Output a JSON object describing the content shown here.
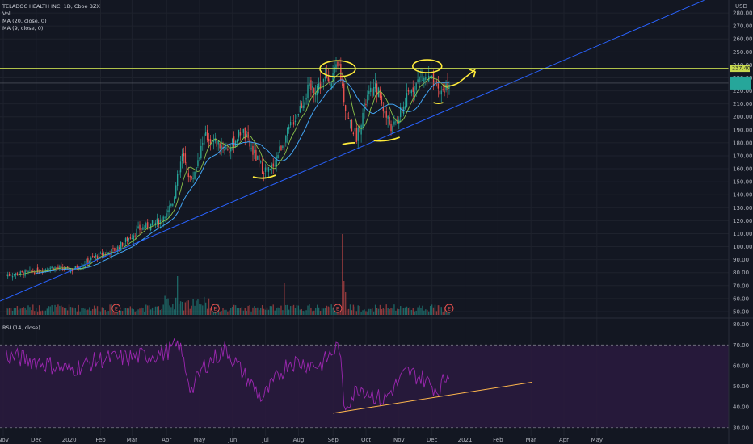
{
  "header": {
    "title_line": "TELADOC HEALTH INC, 1D, Cboe BZX",
    "indicators": [
      "Vol",
      "MA (20, close, 0)",
      "MA (9, close, 0)"
    ],
    "currency": "USD"
  },
  "rsi_panel": {
    "title": "RSI (14, close)"
  },
  "price_tags": {
    "resistance": "237.40",
    "last": ""
  },
  "event_badge": "E",
  "colors": {
    "background": "#131722",
    "grid": "#1e222d",
    "up": "#26a69a",
    "down": "#ef5350",
    "ma20": "#26a69a",
    "ma9": "#42a5f5",
    "trendline": "#2962ff",
    "resistance": "#c6d84f",
    "annotation": "#ffeb3b",
    "rsi": "#9c27b0",
    "rsi_band": "#2a1a3e",
    "rsi_trend": "#ffb74d"
  },
  "chart_data": [
    {
      "type": "candlestick",
      "title": "",
      "x_ticks": [
        "Nov",
        "Dec",
        "2020",
        "Feb",
        "Mar",
        "Apr",
        "May",
        "Jun",
        "Jul",
        "Aug",
        "Sep",
        "Oct",
        "Nov",
        "Dec",
        "2021",
        "Feb",
        "Mar",
        "Apr",
        "May"
      ],
      "y_ticks": [
        50,
        60,
        70,
        80,
        90,
        100,
        110,
        120,
        130,
        140,
        150,
        160,
        170,
        180,
        190,
        200,
        210,
        220,
        230,
        240,
        250,
        260,
        270,
        280
      ],
      "y_tick_labels": [
        "50.00",
        "60.00",
        "70.00",
        "80.00",
        "90.00",
        "100.00",
        "110.00",
        "120.00",
        "130.00",
        "140.00",
        "150.00",
        "160.00",
        "170.00",
        "180.00",
        "190.00",
        "200.00",
        "210.00",
        "220.00",
        "230.00",
        "240.00",
        "250.00",
        "260.00",
        "270.00",
        "280.00"
      ],
      "ylim": [
        45,
        290
      ],
      "series_close_keypoints": [
        {
          "t": 0,
          "v": 78
        },
        {
          "t": 14,
          "v": 80
        },
        {
          "t": 28,
          "v": 84
        },
        {
          "t": 42,
          "v": 82
        },
        {
          "t": 56,
          "v": 92
        },
        {
          "t": 70,
          "v": 98
        },
        {
          "t": 84,
          "v": 113
        },
        {
          "t": 98,
          "v": 120
        },
        {
          "t": 106,
          "v": 135
        },
        {
          "t": 112,
          "v": 170
        },
        {
          "t": 118,
          "v": 150
        },
        {
          "t": 126,
          "v": 185
        },
        {
          "t": 134,
          "v": 180
        },
        {
          "t": 142,
          "v": 175
        },
        {
          "t": 150,
          "v": 190
        },
        {
          "t": 156,
          "v": 175
        },
        {
          "t": 163,
          "v": 160
        },
        {
          "t": 168,
          "v": 158
        },
        {
          "t": 176,
          "v": 180
        },
        {
          "t": 184,
          "v": 200
        },
        {
          "t": 192,
          "v": 220
        },
        {
          "t": 200,
          "v": 225
        },
        {
          "t": 208,
          "v": 232
        },
        {
          "t": 212,
          "v": 238
        },
        {
          "t": 217,
          "v": 200
        },
        {
          "t": 223,
          "v": 185
        },
        {
          "t": 230,
          "v": 215
        },
        {
          "t": 236,
          "v": 222
        },
        {
          "t": 242,
          "v": 200
        },
        {
          "t": 246,
          "v": 190
        },
        {
          "t": 252,
          "v": 205
        },
        {
          "t": 258,
          "v": 222
        },
        {
          "t": 264,
          "v": 230
        },
        {
          "t": 270,
          "v": 228
        },
        {
          "t": 276,
          "v": 218
        },
        {
          "t": 282,
          "v": 227
        }
      ],
      "volume_spike_index": 214,
      "annotations": {
        "trendline": {
          "from": {
            "t": -4,
            "v": 58
          },
          "to": {
            "t": 290,
            "v": 210
          }
        },
        "resistance_level": 237.4,
        "current_level": 226
      }
    },
    {
      "type": "line",
      "title": "RSI (14, close)",
      "y_ticks": [
        30,
        40,
        50,
        60,
        70,
        80
      ],
      "y_tick_labels": [
        "30.00",
        "40.00",
        "50.00",
        "60.00",
        "70.00",
        "80.00"
      ],
      "ylim": [
        26,
        83
      ],
      "overbought": 70,
      "oversold": 30,
      "keypoints": [
        {
          "t": 0,
          "v": 65
        },
        {
          "t": 20,
          "v": 62
        },
        {
          "t": 40,
          "v": 58
        },
        {
          "t": 60,
          "v": 63
        },
        {
          "t": 80,
          "v": 64
        },
        {
          "t": 100,
          "v": 66
        },
        {
          "t": 110,
          "v": 70
        },
        {
          "t": 118,
          "v": 48
        },
        {
          "t": 126,
          "v": 60
        },
        {
          "t": 140,
          "v": 68
        },
        {
          "t": 150,
          "v": 57
        },
        {
          "t": 163,
          "v": 44
        },
        {
          "t": 180,
          "v": 62
        },
        {
          "t": 200,
          "v": 60
        },
        {
          "t": 212,
          "v": 70
        },
        {
          "t": 215,
          "v": 40
        },
        {
          "t": 225,
          "v": 50
        },
        {
          "t": 240,
          "v": 43
        },
        {
          "t": 255,
          "v": 57
        },
        {
          "t": 265,
          "v": 54
        },
        {
          "t": 275,
          "v": 48
        },
        {
          "t": 282,
          "v": 57
        }
      ],
      "trendline": {
        "from": {
          "t": 208,
          "v": 37
        },
        "to": {
          "t": 335,
          "v": 52
        }
      }
    }
  ]
}
